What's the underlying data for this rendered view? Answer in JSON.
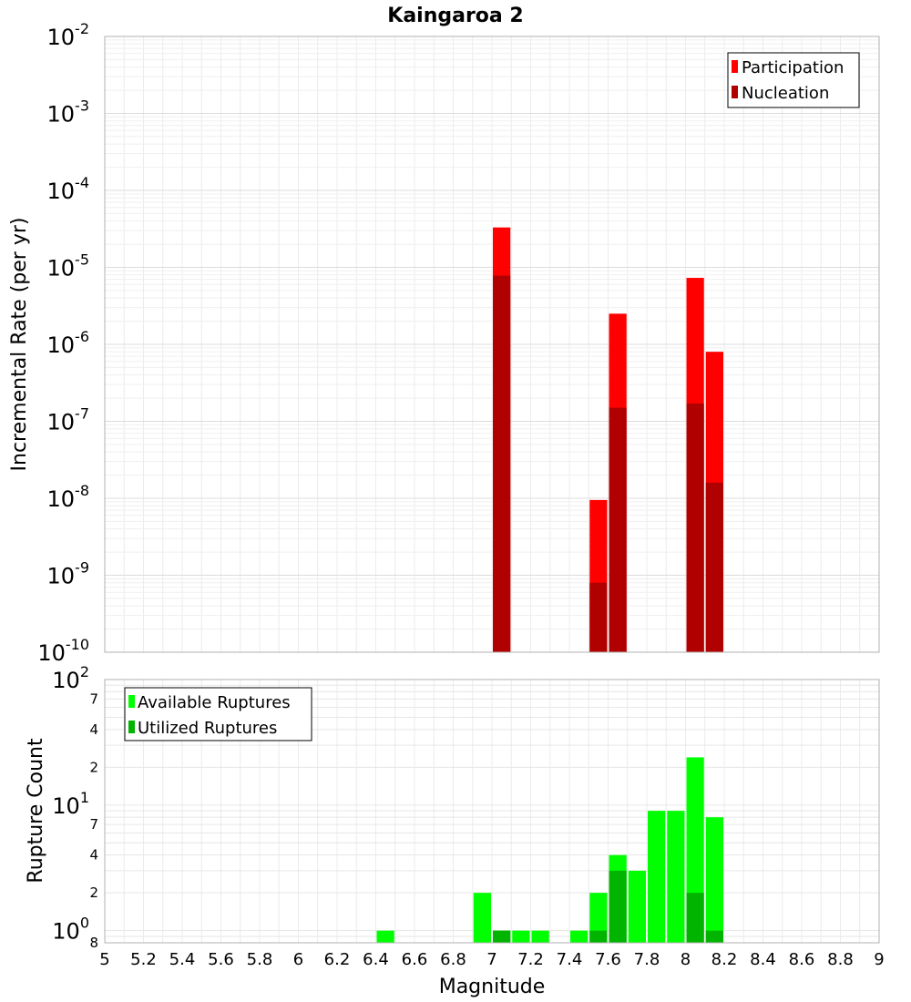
{
  "chart_data": [
    {
      "type": "bar",
      "title": "Kaingaroa 2",
      "ylabel": "Incremental Rate (per yr)",
      "yscale": "log",
      "ylim": [
        1e-10,
        0.01
      ],
      "xlim": [
        5,
        9
      ],
      "bin_width": 0.1,
      "grid": true,
      "legend_position": "top-right",
      "series": [
        {
          "name": "Participation",
          "color": "#ff0000",
          "x": [
            7.05,
            7.55,
            7.65,
            8.05,
            8.15
          ],
          "values": [
            3.3e-05,
            9.5e-09,
            2.5e-06,
            7.3e-06,
            8e-07
          ]
        },
        {
          "name": "Nucleation",
          "color": "#b00000",
          "x": [
            7.05,
            7.55,
            7.65,
            8.05,
            8.15
          ],
          "values": [
            7.8e-06,
            8e-10,
            1.5e-07,
            1.7e-07,
            1.6e-08
          ]
        }
      ],
      "y_tick_labels": [
        {
          "base": "10",
          "exp": "-2"
        },
        {
          "base": "10",
          "exp": "-3"
        },
        {
          "base": "10",
          "exp": "-4"
        },
        {
          "base": "10",
          "exp": "-5"
        },
        {
          "base": "10",
          "exp": "-6"
        },
        {
          "base": "10",
          "exp": "-7"
        },
        {
          "base": "10",
          "exp": "-8"
        },
        {
          "base": "10",
          "exp": "-9"
        },
        {
          "base": "10",
          "exp": "-10"
        }
      ]
    },
    {
      "type": "bar",
      "xlabel": "Magnitude",
      "ylabel": "Rupture Count",
      "yscale": "log",
      "ylim": [
        0.8,
        100
      ],
      "xlim": [
        5,
        9
      ],
      "bin_width": 0.1,
      "grid": true,
      "legend_position": "top-left",
      "series": [
        {
          "name": "Available Ruptures",
          "color": "#00ff00",
          "x": [
            6.45,
            6.95,
            7.05,
            7.15,
            7.25,
            7.45,
            7.55,
            7.65,
            7.75,
            7.85,
            7.95,
            8.05,
            8.15
          ],
          "values": [
            1,
            2,
            1,
            1,
            1,
            1,
            2,
            4,
            3,
            9,
            9,
            24,
            8
          ]
        },
        {
          "name": "Utilized Ruptures",
          "color": "#00b400",
          "x": [
            7.05,
            7.55,
            7.65,
            8.05,
            8.15
          ],
          "values": [
            1,
            1,
            3,
            2,
            1
          ]
        }
      ],
      "y_tick_labels": [
        {
          "value": 100,
          "base": "10",
          "exp": "2"
        },
        {
          "value": 70,
          "label": "7"
        },
        {
          "value": 40,
          "label": "4"
        },
        {
          "value": 20,
          "label": "2"
        },
        {
          "value": 10,
          "base": "10",
          "exp": "1"
        },
        {
          "value": 7,
          "label": "7"
        },
        {
          "value": 4,
          "label": "4"
        },
        {
          "value": 2,
          "label": "2"
        },
        {
          "value": 1,
          "base": "10",
          "exp": "0"
        },
        {
          "value": 0.8,
          "label": "8"
        }
      ],
      "x_tick_labels": [
        "5",
        "5.2",
        "5.4",
        "5.6",
        "5.8",
        "6",
        "6.2",
        "6.4",
        "6.6",
        "6.8",
        "7",
        "7.2",
        "7.4",
        "7.6",
        "7.8",
        "8",
        "8.2",
        "8.4",
        "8.6",
        "8.8",
        "9"
      ]
    }
  ]
}
